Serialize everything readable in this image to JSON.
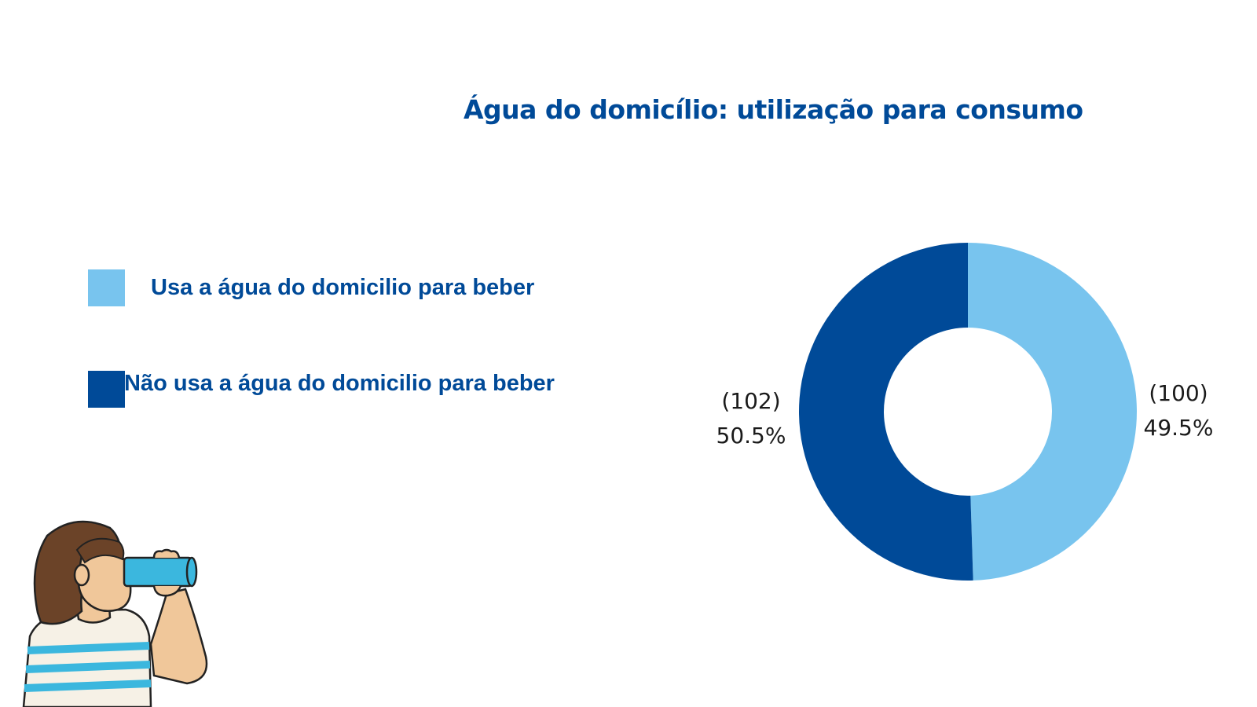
{
  "chart_data": {
    "type": "pie",
    "title": "Água do domicílio: utilização para consumo",
    "donut": true,
    "slices": [
      {
        "name": "Usa a água do domicilio para beber",
        "value": 100,
        "percent": 49.5,
        "count_label": "(100)",
        "percent_label": "49.5%",
        "color": "#78c4ee"
      },
      {
        "name": "Não usa a água do domicilio para beber",
        "value": 102,
        "percent": 50.5,
        "count_label": "(102)",
        "percent_label": "50.5%",
        "color": "#004a98"
      }
    ],
    "legend_position": "left"
  },
  "colors": {
    "title": "#004a98",
    "legend_text": "#004a98",
    "background": "#ffffff"
  },
  "illustration": {
    "icon": "person-drinking-water-icon"
  }
}
